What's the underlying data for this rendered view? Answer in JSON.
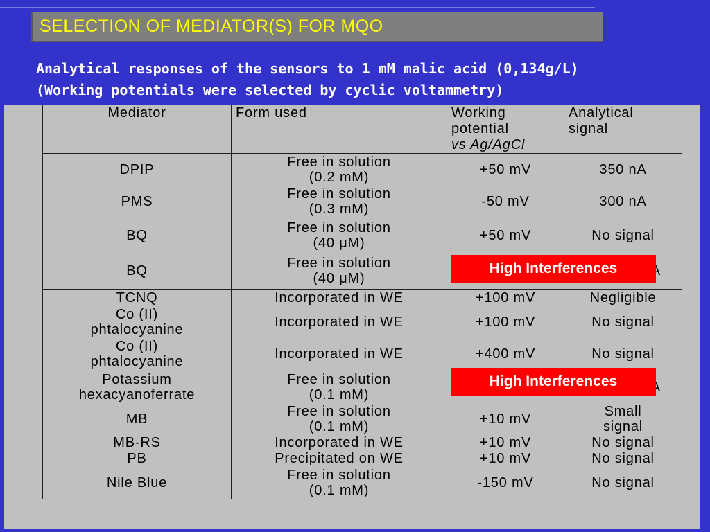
{
  "title": "SELECTION OF MEDIATOR(S) FOR MQO",
  "subtitle": {
    "line1": "Analytical responses of the sensors to 1 mM malic acid (0,134g/L)",
    "line2": "(Working potentials were selected by cyclic voltammetry)"
  },
  "table": {
    "headers": {
      "mediator": "Mediator",
      "form": "Form used",
      "potential_1": "Working",
      "potential_2": "potential",
      "potential_3": "vs Ag/AgCl",
      "signal_1": "Analytical",
      "signal_2": "signal"
    },
    "rows": [
      {
        "mediator": "DPIP",
        "form1": "Free in solution",
        "form2": "(0.2 mM)",
        "potential": "+50 mV",
        "signal": "350 nA"
      },
      {
        "mediator": "PMS",
        "form1": "Free in solution",
        "form2": "(0.3 mM)",
        "potential": "-50 mV",
        "signal": "300 nA"
      },
      {
        "mediator": "BQ",
        "form1": "Free in solution",
        "form2": "(40 μM)",
        "potential": "+50 mV",
        "signal": "No signal"
      },
      {
        "mediator": "BQ",
        "form1": "Free in solution",
        "form2": "(40 μM)",
        "potential": "",
        "signal": "A"
      },
      {
        "mediator": "TCNQ",
        "form1": "Incorporated in WE",
        "form2": "",
        "potential": "+100 mV",
        "signal": "Negligible"
      },
      {
        "mediator1": "Co (II)",
        "mediator2": "phtalocyanine",
        "form1": "Incorporated in WE",
        "potential": "+100 mV",
        "signal": "No signal"
      },
      {
        "mediator1": "Co (II)",
        "mediator2": "phtalocyanine",
        "form1": "Incorporated in WE",
        "potential": "+400 mV",
        "signal": "No signal"
      },
      {
        "mediator1": "Potassium",
        "mediator2": "hexacyanoferrate",
        "form1": "Free in solution",
        "form2": "(0.1 mM)",
        "potential": "",
        "signal": "A"
      },
      {
        "mediator": "MB",
        "form1": "Free in solution",
        "form2": "(0.1 mM)",
        "potential": "+10 mV",
        "signal1": "Small",
        "signal2": "signal"
      },
      {
        "mediator": "MB-RS",
        "form1": "Incorporated in WE",
        "potential": "+10 mV",
        "signal": "No signal"
      },
      {
        "mediator": "PB",
        "form1": "Precipitated on WE",
        "potential": "+10 mV",
        "signal": "No signal"
      },
      {
        "mediator": "Nile Blue",
        "form1": "Free in solution",
        "form2": "(0.1 mM)",
        "potential": "-150 mV",
        "signal": "No signal"
      }
    ]
  },
  "overlays": {
    "bq_interference": "High Interferences",
    "potassium_interference": "High Interferences"
  },
  "colors": {
    "background": "#3333cc",
    "title_box": "#7f7f7f",
    "title_text": "#ffff00",
    "table_bg": "#c0c0c0",
    "badge": "#ff0000"
  }
}
